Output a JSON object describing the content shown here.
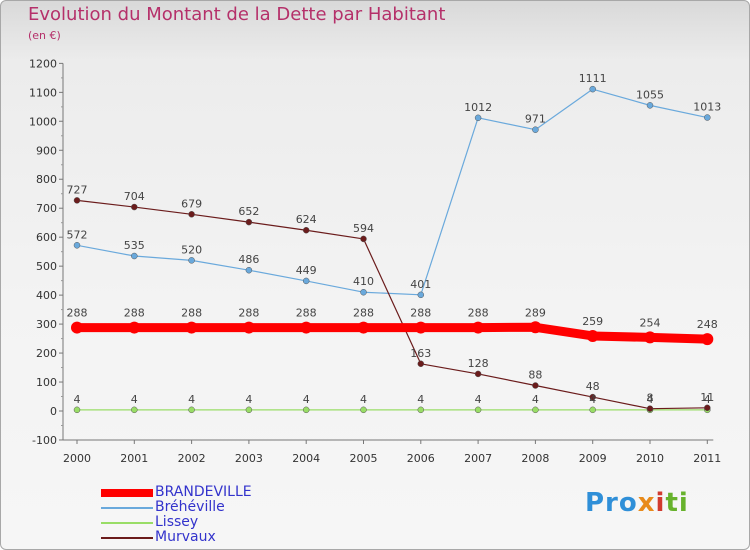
{
  "header": {
    "title": "Evolution du Montant de la Dette par Habitant",
    "subtitle": "(en €)"
  },
  "chart_data": {
    "type": "line",
    "title": "Evolution du Montant de la Dette par Habitant",
    "subtitle": "(en €)",
    "xlabel": "",
    "ylabel": "",
    "x": [
      "2000",
      "2001",
      "2002",
      "2003",
      "2004",
      "2005",
      "2006",
      "2007",
      "2008",
      "2009",
      "2010",
      "2011"
    ],
    "ylim": [
      -100,
      1200
    ],
    "yticks": [
      "-100",
      "0",
      "100",
      "200",
      "300",
      "400",
      "500",
      "600",
      "700",
      "800",
      "900",
      "1000",
      "1100",
      "1200"
    ],
    "grid": false,
    "legend_position": "bottom-left",
    "series": [
      {
        "name": "BRANDEVILLE",
        "color": "#ff0000",
        "values": [
          288,
          288,
          288,
          288,
          288,
          288,
          288,
          288,
          289,
          259,
          254,
          248
        ],
        "labels": [
          "288",
          "288",
          "288",
          "288",
          "288",
          "288",
          "288",
          "288",
          "289",
          "259",
          "254",
          "248"
        ]
      },
      {
        "name": "Bréhéville",
        "color": "#6aa9dc",
        "values": [
          572,
          535,
          520,
          486,
          449,
          410,
          401,
          1012,
          971,
          1111,
          1055,
          1013
        ],
        "labels": [
          "572",
          "535",
          "520",
          "486",
          "449",
          "410",
          "401",
          "1012",
          "971",
          "1111",
          "1055",
          "1013"
        ]
      },
      {
        "name": "Lissey",
        "color": "#99dd66",
        "values": [
          4,
          4,
          4,
          4,
          4,
          4,
          4,
          4,
          4,
          4,
          4,
          4
        ],
        "labels": [
          "4",
          "4",
          "4",
          "4",
          "4",
          "4",
          "4",
          "4",
          "4",
          "4",
          "4",
          "4"
        ]
      },
      {
        "name": "Murvaux",
        "color": "#6b1c1c",
        "values": [
          727,
          704,
          679,
          652,
          624,
          594,
          163,
          128,
          88,
          48,
          8,
          11
        ],
        "labels": [
          "727",
          "704",
          "679",
          "652",
          "624",
          "594",
          "163",
          "128",
          "88",
          "48",
          "8",
          "11"
        ]
      }
    ]
  },
  "legend": {
    "items": [
      {
        "label": "BRANDEVILLE"
      },
      {
        "label": "Bréhéville"
      },
      {
        "label": "Lissey"
      },
      {
        "label": "Murvaux"
      }
    ]
  },
  "logo": {
    "part1": "Pro",
    "part2": "x",
    "part3": "i",
    "part4": "ti"
  }
}
